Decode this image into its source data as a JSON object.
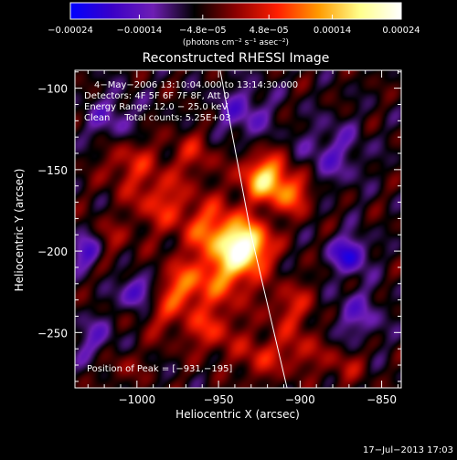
{
  "chart_data": {
    "type": "heatmap",
    "title": "Reconstructed RHESSI Image",
    "xlabel": "Heliocentric X (arcsec)",
    "ylabel": "Heliocentric Y (arcsec)",
    "xlim": [
      -1038,
      -838
    ],
    "ylim": [
      -284,
      -89
    ],
    "xticks": [
      -1000,
      -950,
      -900,
      -850
    ],
    "xtick_labels": [
      "−1000",
      "−950",
      "−900",
      "−850"
    ],
    "yticks": [
      -100,
      -150,
      -200,
      -250
    ],
    "ytick_labels": [
      "−100",
      "−150",
      "−200",
      "−250"
    ],
    "colorbar": {
      "min": -0.00024,
      "max": 0.00024,
      "ticks": [
        -0.00024,
        -0.00014,
        -4.8e-05,
        4.8e-05,
        0.00014,
        0.00024
      ],
      "tick_labels": [
        "−0.00024",
        "−0.00014",
        "−4.8e−05",
        "4.8e−05",
        "0.00014",
        "0.00024"
      ],
      "unit_label": "(photons cm⁻² s⁻¹ asec⁻²)",
      "colors": [
        "#0000ff",
        "#3a00c8",
        "#6e1eb4",
        "#000000",
        "#8c0000",
        "#ff1e00",
        "#ff9a00",
        "#ffff8c",
        "#ffffff"
      ]
    },
    "annotations": [
      "4−May−2006 13:10:04.000 to 13:14:30.000",
      "Detectors: 4F 5F 6F 7F 8F, Att 0",
      "Energy Range: 12.0 − 25.0 keV",
      "Clean     Total counts: 5.25E+03",
      "Position of Peak = [−931,−195]"
    ],
    "peak": {
      "x": -931,
      "y": -195
    },
    "limb_line": [
      {
        "x": -949,
        "y": -89
      },
      {
        "x": -930,
        "y": -190
      },
      {
        "x": -908,
        "y": -284
      }
    ],
    "emission_blobs": [
      {
        "x": -932,
        "y": -197,
        "r": 10,
        "amp": 1.0
      },
      {
        "x": -922,
        "y": -155,
        "r": 10,
        "amp": 0.85
      },
      {
        "x": -905,
        "y": -165,
        "r": 9,
        "amp": 0.5
      },
      {
        "x": -952,
        "y": -188,
        "r": 13,
        "amp": 0.6
      },
      {
        "x": -945,
        "y": -215,
        "r": 12,
        "amp": 0.55
      },
      {
        "x": -972,
        "y": -222,
        "r": 10,
        "amp": 0.55
      },
      {
        "x": -955,
        "y": -248,
        "r": 11,
        "amp": 0.4
      },
      {
        "x": -985,
        "y": -170,
        "r": 13,
        "amp": 0.4
      },
      {
        "x": -1005,
        "y": -145,
        "r": 12,
        "amp": 0.35
      },
      {
        "x": -1018,
        "y": -195,
        "r": 9,
        "amp": 0.25
      },
      {
        "x": -905,
        "y": -235,
        "r": 11,
        "amp": 0.35
      },
      {
        "x": -900,
        "y": -262,
        "r": 9,
        "amp": 0.3
      },
      {
        "x": -925,
        "y": -265,
        "r": 10,
        "amp": 0.35
      },
      {
        "x": -965,
        "y": -140,
        "r": 10,
        "amp": 0.3
      },
      {
        "x": -873,
        "y": -270,
        "r": 9,
        "amp": 0.25
      },
      {
        "x": -985,
        "y": -240,
        "r": 10,
        "amp": 0.25
      },
      {
        "x": -1010,
        "y": -270,
        "r": 9,
        "amp": 0.2
      },
      {
        "x": -935,
        "y": -115,
        "r": 12,
        "amp": -0.35
      },
      {
        "x": -1030,
        "y": -200,
        "r": 7,
        "amp": -0.55
      },
      {
        "x": -1000,
        "y": -225,
        "r": 7,
        "amp": -0.55
      },
      {
        "x": -870,
        "y": -202,
        "r": 8,
        "amp": -0.6
      },
      {
        "x": -1015,
        "y": -120,
        "r": 12,
        "amp": -0.3
      },
      {
        "x": -880,
        "y": -140,
        "r": 14,
        "amp": -0.3
      },
      {
        "x": -865,
        "y": -240,
        "r": 12,
        "amp": -0.3
      },
      {
        "x": -1025,
        "y": -255,
        "r": 10,
        "amp": -0.3
      }
    ]
  },
  "footer": {
    "timestamp": "17−Jul−2013 17:03"
  }
}
